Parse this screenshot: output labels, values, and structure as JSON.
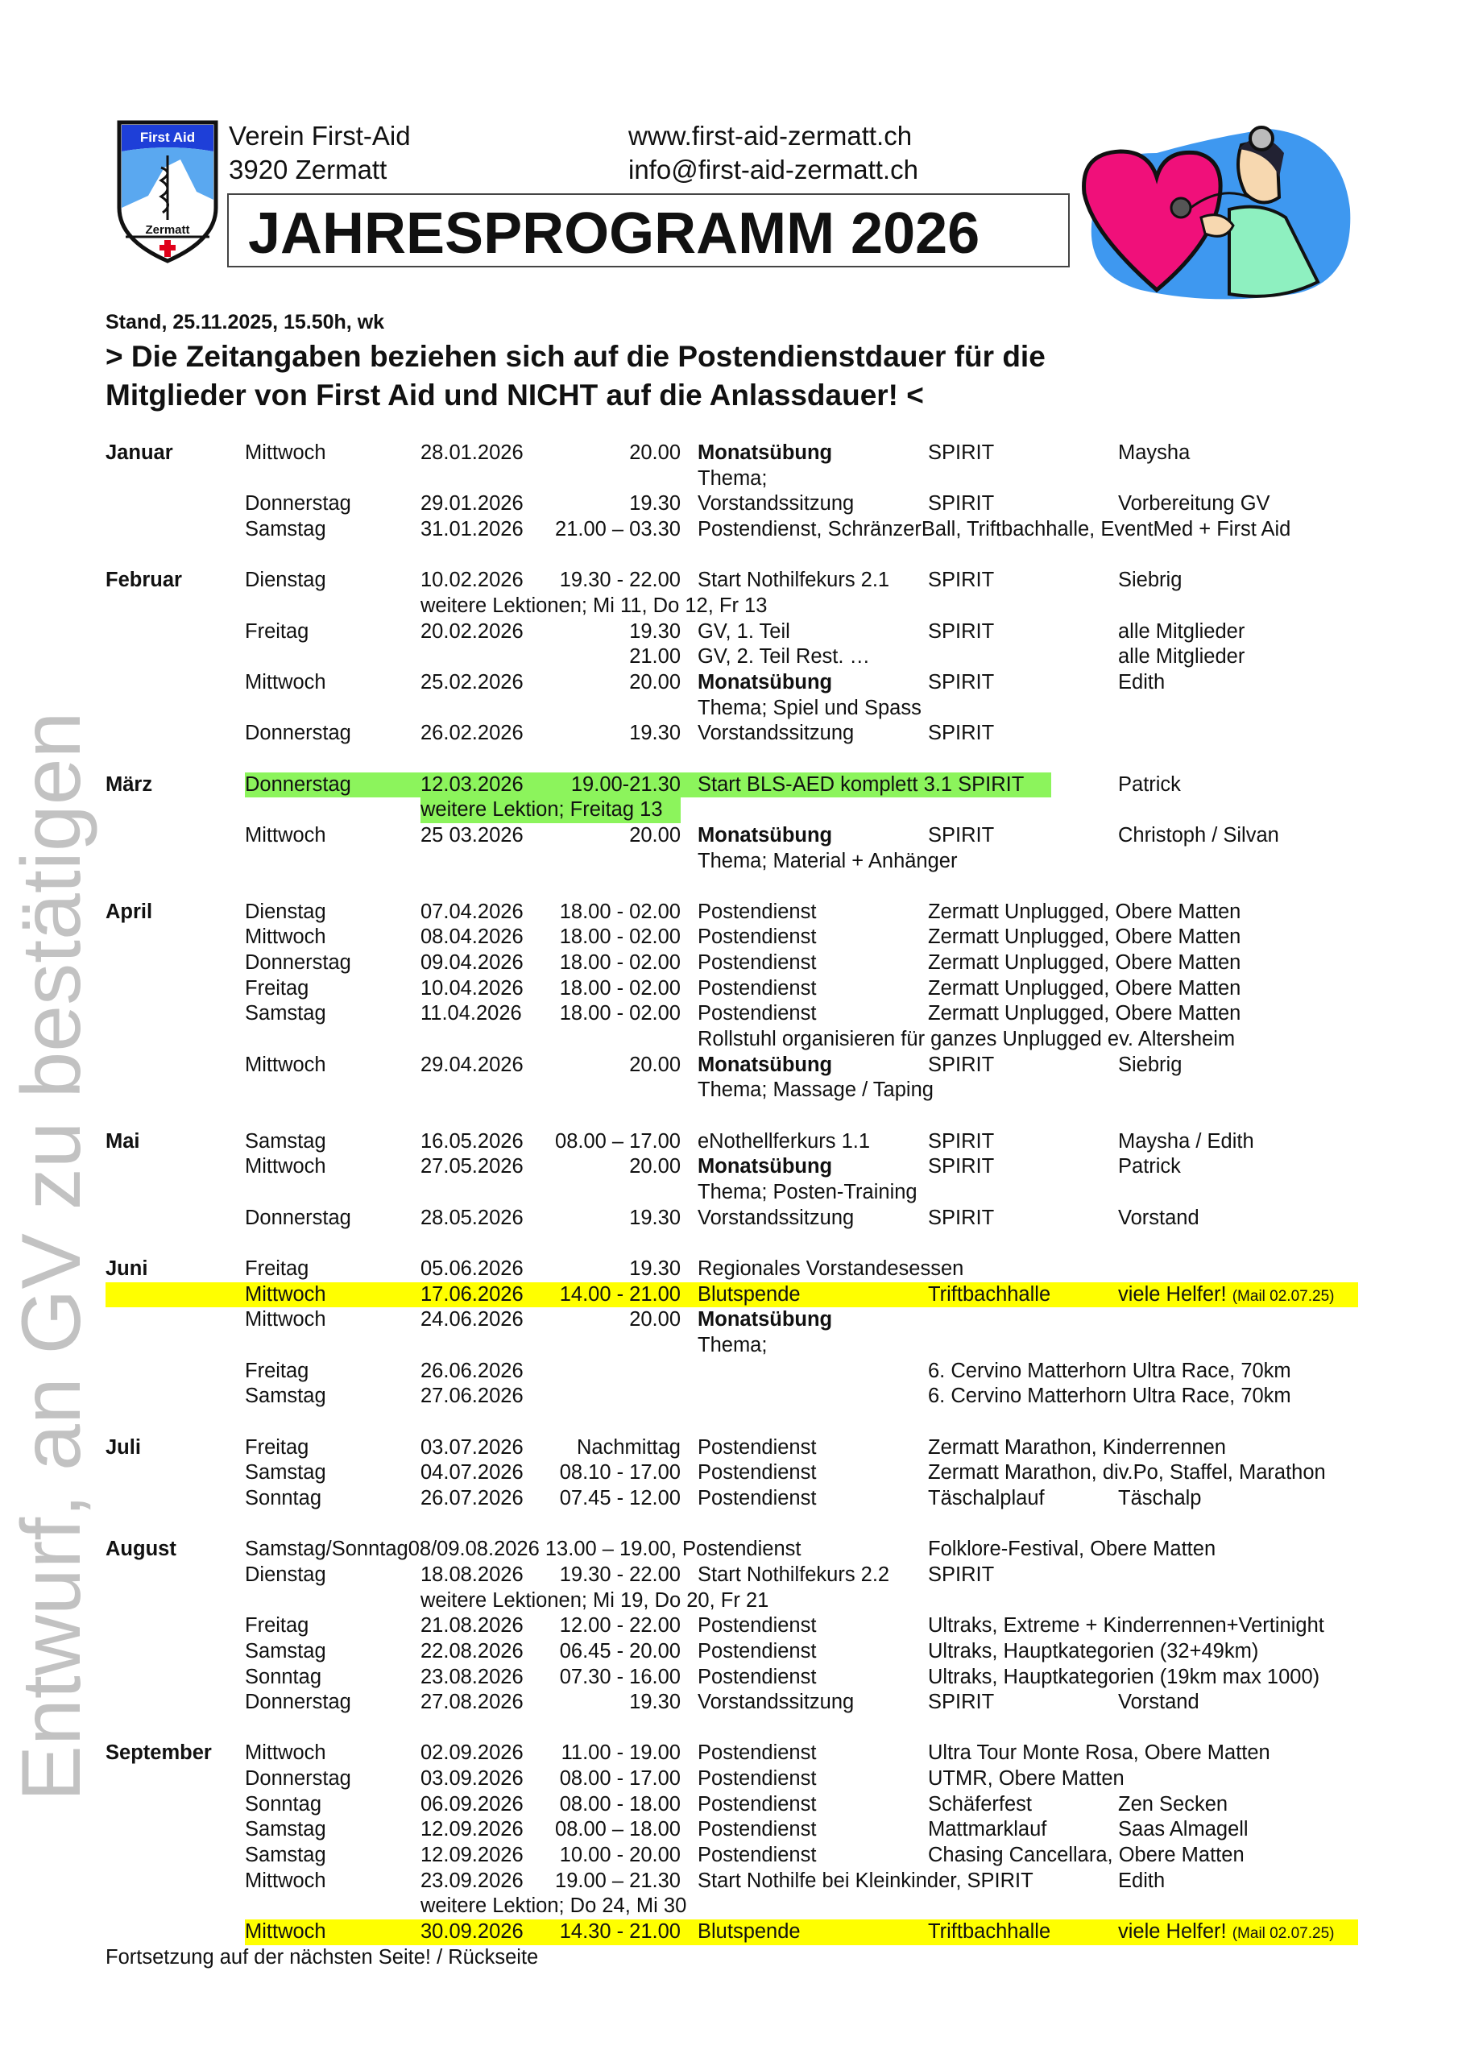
{
  "header": {
    "org_name": "Verein First-Aid",
    "org_city": "3920 Zermatt",
    "website": "www.first-aid-zermatt.ch",
    "email": "info@first-aid-zermatt.ch",
    "title": "JAHRESPROGRAMM 2026",
    "logo": {
      "top_text": "First Aid",
      "bottom_text": "Zermatt",
      "colors": {
        "blue": "#1E3FD8",
        "sky": "#5AA8F0",
        "red": "#E0001A"
      }
    },
    "clipart": "doctor-with-stethoscope-on-heart"
  },
  "stand": "Stand, 25.11.2025, 15.50h, wk",
  "headline": [
    "> Die Zeitangaben beziehen sich auf die Postendienstdauer für die",
    "Mitglieder von First Aid und NICHT auf die Anlassdauer! <"
  ],
  "watermark": "Entwurf, an GV zu bestätigen",
  "highlight_colors": {
    "green": "#8CF45C",
    "yellow": "#FFFF00"
  },
  "months": [
    {
      "name": "Januar",
      "lines": [
        {
          "day": "Mittwoch",
          "date": "28.01.2026",
          "time": "20.00",
          "event": "Monatsübung",
          "bold": true,
          "place": "SPIRIT",
          "contact": "Maysha"
        },
        {
          "cont": "Thema;"
        },
        {
          "day": "Donnerstag",
          "date": "29.01.2026",
          "time": "19.30",
          "event": "Vorstandssitzung",
          "place": "SPIRIT",
          "contact": " Vorbereitung GV"
        },
        {
          "day": "Samstag",
          "date": "31.01.2026",
          "time": "21.00 – 03.30",
          "event": "Postendienst, SchränzerBall, Triftbachhalle, EventMed + First Aid"
        }
      ]
    },
    {
      "name": "Februar",
      "lines": [
        {
          "day": "Dienstag",
          "date": "10.02.2026",
          "time": "19.30 - 22.00",
          "event": "Start Nothilfekurs 2.1",
          "place": "SPIRIT",
          "contact": "Siebrig"
        },
        {
          "note": "weitere Lektionen; Mi 11, Do 12, Fr 13"
        },
        {
          "day": "Freitag",
          "date": "20.02.2026",
          "time": "19.30",
          "event": "GV, 1. Teil",
          "place": "SPIRIT",
          "contact": "alle Mitglieder"
        },
        {
          "time": "21.00",
          "event": "GV, 2. Teil Rest. …",
          "contact": "alle Mitglieder"
        },
        {
          "day": "Mittwoch",
          "date": "25.02.2026",
          "time": "20.00",
          "event": "Monatsübung",
          "bold": true,
          "place": "SPIRIT",
          "contact": "Edith"
        },
        {
          "cont": "Thema; Spiel und Spass"
        },
        {
          "day": "Donnerstag",
          "date": "26.02.2026",
          "time": "19.30",
          "event": "Vorstandssitzung",
          "place": "SPIRIT"
        }
      ]
    },
    {
      "name": "März",
      "lines": [
        {
          "day": "Donnerstag",
          "date": "12.03.2026",
          "time": "19.00-21.30",
          "event": "Start BLS-AED komplett 3.1 SPIRIT",
          "contact": "Patrick",
          "hl": "green-row"
        },
        {
          "note": "weitere Lektion; Freitag 13",
          "hl": "green-note"
        },
        {
          "day": "Mittwoch",
          "date": "25 03.2026",
          "time": "20.00",
          "event": "Monatsübung",
          "bold": true,
          "place": "SPIRIT",
          "contact": "Christoph / Silvan"
        },
        {
          "cont": "Thema; Material + Anhänger"
        }
      ]
    },
    {
      "name": "April",
      "lines": [
        {
          "day": "Dienstag",
          "date": "07.04.2026",
          "time": "18.00 - 02.00",
          "event": "Postendienst",
          "place": "Zermatt Unplugged, Obere Matten"
        },
        {
          "day": "Mittwoch",
          "date": "08.04.2026",
          "time": "18.00 - 02.00",
          "event": "Postendienst",
          "place": "Zermatt Unplugged, Obere Matten"
        },
        {
          "day": "Donnerstag",
          "date": "09.04.2026",
          "time": "18.00 - 02.00",
          "event": "Postendienst",
          "place": "Zermatt Unplugged, Obere Matten"
        },
        {
          "day": "Freitag",
          "date": "10.04.2026",
          "time": "18.00 - 02.00",
          "event": "Postendienst",
          "place": "Zermatt Unplugged, Obere Matten"
        },
        {
          "day": "Samstag",
          "date": "11.04.2026",
          "time": "18.00 - 02.00",
          "event": "Postendienst",
          "place": "Zermatt Unplugged, Obere Matten"
        },
        {
          "cont": "Rollstuhl organisieren für ganzes Unplugged ev. Altersheim"
        },
        {
          "day": "Mittwoch",
          "date": "29.04.2026",
          "time": "20.00",
          "event": "Monatsübung",
          "bold": true,
          "place": "SPIRIT",
          "contact": "Siebrig"
        },
        {
          "cont": "Thema; Massage / Taping"
        }
      ]
    },
    {
      "name": "Mai",
      "lines": [
        {
          "day": "Samstag",
          "date": "16.05.2026",
          "time": "08.00 – 17.00",
          "event": "eNothellferkurs 1.1",
          "place": "SPIRIT",
          "contact": "Maysha / Edith"
        },
        {
          "day": "Mittwoch",
          "date": "27.05.2026",
          "time": "20.00",
          "event": "Monatsübung",
          "bold": true,
          "place": "SPIRIT",
          "contact": "Patrick"
        },
        {
          "cont": "Thema; Posten-Training"
        },
        {
          "day": "Donnerstag",
          "date": "28.05.2026",
          "time": "19.30",
          "event": "Vorstandssitzung",
          "place": "SPIRIT",
          "contact": "Vorstand"
        }
      ]
    },
    {
      "name": "Juni",
      "lines": [
        {
          "day": "Freitag",
          "date": "05.06.2026",
          "time": "19.30",
          "event": "Regionales Vorstandesessen"
        },
        {
          "day": "Mittwoch",
          "date": "17.06.2026",
          "time": "14.00 - 21.00",
          "event": "Blutspende",
          "place": "Triftbachhalle",
          "contact": "viele Helfer!",
          "small": "(Mail 02.07.25)",
          "hl": "yellow-full"
        },
        {
          "day": "Mittwoch",
          "date": "24.06.2026",
          "time": "20.00",
          "event": "Monatsübung",
          "bold": true
        },
        {
          "cont": "Thema;"
        },
        {
          "day": "Freitag",
          "date": "26.06.2026",
          "place": "6. Cervino Matterhorn Ultra Race, 70km"
        },
        {
          "day": "Samstag",
          "date": "27.06.2026",
          "place": "6. Cervino Matterhorn Ultra Race, 70km"
        }
      ]
    },
    {
      "name": "Juli",
      "lines": [
        {
          "day": "Freitag",
          "date": "03.07.2026",
          "time": "Nachmittag",
          "event": "Postendienst",
          "place": "Zermatt Marathon, Kinderrennen"
        },
        {
          "day": "Samstag",
          "date": "04.07.2026",
          "time": "08.10 - 17.00",
          "event": "Postendienst",
          "place": "Zermatt Marathon, div.Po, Staffel, Marathon"
        },
        {
          "day": "Sonntag",
          "date": "26.07.2026",
          "time": "07.45 - 12.00",
          "event": "Postendienst",
          "place": "Täschalplauf",
          "contact": "Täschalp"
        }
      ]
    },
    {
      "name": "August",
      "lines": [
        {
          "span": "Samstag/Sonntag08/09.08.2026 13.00 – 19.00, Postendienst",
          "place": "Folklore-Festival, Obere Matten"
        },
        {
          "day": "Dienstag",
          "date": "18.08.2026",
          "time": "19.30 - 22.00",
          "event": "Start Nothilfekurs 2.2",
          "place": "SPIRIT"
        },
        {
          "note": "weitere Lektionen; Mi 19, Do 20, Fr 21"
        },
        {
          "day": "Freitag",
          "date": "21.08.2026",
          "time": "12.00 - 22.00",
          "event": "Postendienst",
          "place": "Ultraks, Extreme + Kinderrennen+Vertinight"
        },
        {
          "day": "Samstag",
          "date": "22.08.2026",
          "time": "06.45 - 20.00",
          "event": "Postendienst",
          "place": "Ultraks, Hauptkategorien (32+49km)"
        },
        {
          "day": "Sonntag",
          "date": "23.08.2026",
          "time": "07.30 - 16.00",
          "event": "Postendienst",
          "place": "Ultraks, Hauptkategorien (19km max 1000)"
        },
        {
          "day": "Donnerstag",
          "date": "27.08.2026",
          "time": "19.30",
          "event": "Vorstandssitzung",
          "place": "SPIRIT",
          "contact": "Vorstand"
        }
      ]
    },
    {
      "name": "September",
      "lines": [
        {
          "day": "Mittwoch",
          "date": "02.09.2026",
          "time": "11.00 - 19.00",
          "event": "Postendienst",
          "place": "Ultra Tour Monte Rosa, Obere Matten"
        },
        {
          "day": "Donnerstag",
          "date": "03.09.2026",
          "time": "08.00 - 17.00",
          "event": "Postendienst",
          "place": "UTMR, Obere Matten"
        },
        {
          "day": "Sonntag",
          "date": "06.09.2026",
          "time": "08.00 - 18.00",
          "event": "Postendienst",
          "place": "Schäferfest",
          "contact": "Zen Secken"
        },
        {
          "day": "Samstag",
          "date": "12.09.2026",
          "time": "08.00 – 18.00",
          "event": "Postendienst",
          "place": "Mattmarklauf",
          "contact": "Saas Almagell"
        },
        {
          "day": "Samstag",
          "date": "12.09.2026",
          "time": "10.00 - 20.00",
          "event": "Postendienst",
          "place": "Chasing Cancellara, Obere Matten"
        },
        {
          "day": "Mittwoch",
          "date": "23.09.2026",
          "time": "19.00 – 21.30",
          "event": "Start Nothilfe bei Kleinkinder, SPIRIT",
          "contact": "Edith"
        },
        {
          "note": "weitere Lektion; Do 24, Mi 30"
        },
        {
          "day": "Mittwoch",
          "date": "30.09.2026",
          "time": "14.30 - 21.00",
          "event": "Blutspende",
          "place": "Triftbachhalle",
          "contact": "viele Helfer!",
          "small": "(Mail 02.07.25)",
          "hl": "yellow-day"
        }
      ]
    }
  ],
  "footer": "Fortsetzung auf der nächsten Seite! / Rückseite"
}
